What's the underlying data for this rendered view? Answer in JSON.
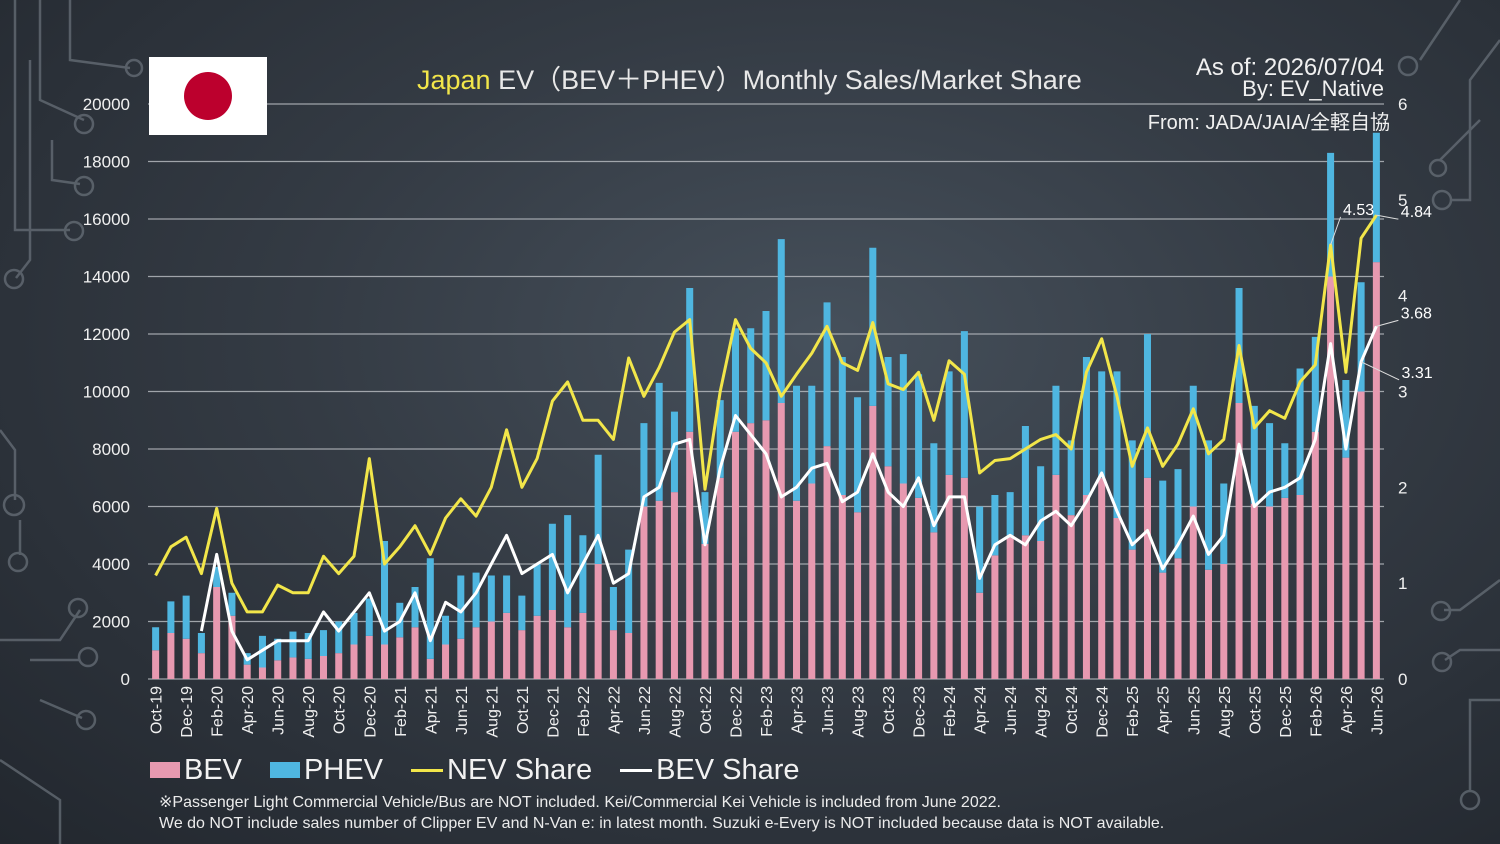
{
  "title_prefix": "Japan",
  "title_rest": " EV（BEV＋PHEV）Monthly Sales/Market Share",
  "as_of": "As of: 2026/07/04",
  "by": "By: EV_Native",
  "source": "From: JADA/JAIA/全軽自協",
  "flag": "japan-flag",
  "legend": {
    "bev": "BEV",
    "phev": "PHEV",
    "nev": "NEV Share",
    "bevshare": "BEV Share"
  },
  "notes": [
    "※Passenger Light Commercial Vehicle/Bus are NOT included. Kei/Commercial Kei Vehicle is included from June 2022.",
    "We do NOT include sales number of Clipper EV and N-Van e: in latest month. Suzuki e-Every is NOT included because data is NOT available."
  ],
  "colors": {
    "bev": "#e799b0",
    "phev": "#4fb6e0",
    "nev": "#f2e64a",
    "bevshare": "#ffffff",
    "grid": "#b4b8bd"
  },
  "chart_data": {
    "type": "bar",
    "title": "Japan EV（BEV＋PHEV）Monthly Sales/Market Share",
    "categories": [
      "Oct-19",
      "Nov-19",
      "Dec-19",
      "Jan-20",
      "Feb-20",
      "Mar-20",
      "Apr-20",
      "May-20",
      "Jun-20",
      "Jul-20",
      "Aug-20",
      "Sep-20",
      "Oct-20",
      "Nov-20",
      "Dec-20",
      "Jan-21",
      "Feb-21",
      "Mar-21",
      "Apr-21",
      "May-21",
      "Jun-21",
      "Jul-21",
      "Aug-21",
      "Sep-21",
      "Oct-21",
      "Nov-21",
      "Dec-21",
      "Jan-22",
      "Feb-22",
      "Mar-22",
      "Apr-22",
      "May-22",
      "Jun-22",
      "Jul-22",
      "Aug-22",
      "Sep-22",
      "Oct-22",
      "Nov-22",
      "Dec-22",
      "Jan-23",
      "Feb-23",
      "Mar-23",
      "Apr-23",
      "May-23",
      "Jun-23",
      "Jul-23",
      "Aug-23",
      "Sep-23",
      "Oct-23",
      "Nov-23",
      "Dec-23",
      "Jan-24",
      "Feb-24",
      "Mar-24",
      "Apr-24",
      "May-24",
      "Jun-24",
      "Jul-24",
      "Aug-24",
      "Sep-24",
      "Oct-24",
      "Nov-24",
      "Dec-24",
      "Jan-25",
      "Feb-25",
      "Mar-25",
      "Apr-25",
      "May-25",
      "Jun-25",
      "Jul-25",
      "Aug-25",
      "Sep-25",
      "Oct-25",
      "Nov-25",
      "Dec-25",
      "Jan-26",
      "Feb-26",
      "Mar-26",
      "Apr-26",
      "May-26",
      "Jun-26"
    ],
    "x_tick_labels": [
      "Oct-19",
      "Dec-19",
      "Feb-20",
      "Apr-20",
      "Jun-20",
      "Aug-20",
      "Oct-20",
      "Dec-20",
      "Feb-21",
      "Apr-21",
      "Jun-21",
      "Aug-21",
      "Oct-21",
      "Dec-21",
      "Feb-22",
      "Apr-22",
      "Jun-22",
      "Aug-22",
      "Oct-22",
      "Dec-22",
      "Feb-23",
      "Apr-23",
      "Jun-23",
      "Aug-23",
      "Oct-23",
      "Dec-23",
      "Feb-24",
      "Apr-24",
      "Jun-24",
      "Aug-24",
      "Oct-24",
      "Dec-24",
      "Feb-25",
      "Apr-25",
      "Jun-25",
      "Aug-25",
      "Oct-25",
      "Dec-25",
      "Feb-26",
      "Apr-26",
      "Jun-26"
    ],
    "y_left_ticks": [
      "0",
      "2000",
      "4000",
      "6000",
      "8000",
      "10000",
      "12000",
      "14000",
      "16000",
      "18000",
      "20000"
    ],
    "y_right_ticks": [
      "0",
      "1",
      "2",
      "3",
      "4",
      "5",
      "6"
    ],
    "ylim_left": [
      0,
      20000
    ],
    "ylim_right": [
      0,
      6
    ],
    "stacked": true,
    "grid": true,
    "legend_position": "bottom-left",
    "series": [
      {
        "name": "BEV",
        "axis": "left",
        "kind": "bar",
        "values": [
          1000,
          1600,
          1400,
          900,
          3200,
          2200,
          500,
          400,
          650,
          750,
          700,
          800,
          900,
          1200,
          1500,
          1200,
          1450,
          1800,
          700,
          1200,
          1400,
          1800,
          2000,
          2300,
          1700,
          2200,
          2400,
          1800,
          2300,
          4000,
          1700,
          1600,
          6000,
          6200,
          6500,
          8600,
          4700,
          7000,
          8600,
          8900,
          9000,
          9600,
          6200,
          6800,
          8100,
          6400,
          5800,
          9500,
          7400,
          6800,
          6300,
          5100,
          7100,
          7000,
          3000,
          4300,
          5000,
          5000,
          4800,
          7100,
          5700,
          6400,
          7000,
          5600,
          4500,
          7000,
          3700,
          4200,
          6000,
          3800,
          4000,
          9600,
          6100,
          6000,
          6300,
          6400,
          8600,
          14000,
          7700,
          10000,
          14500
        ]
      },
      {
        "name": "PHEV",
        "axis": "left",
        "kind": "bar",
        "values": [
          800,
          1100,
          1500,
          700,
          700,
          800,
          400,
          1100,
          750,
          900,
          900,
          900,
          1100,
          1100,
          1300,
          3600,
          1200,
          1400,
          3500,
          1000,
          2200,
          1900,
          1600,
          1300,
          1200,
          1800,
          3000,
          3900,
          2700,
          3800,
          1500,
          2900,
          2900,
          4100,
          2800,
          5000,
          1800,
          2700,
          3600,
          3300,
          3800,
          5700,
          4000,
          3400,
          5000,
          4800,
          4000,
          5500,
          3800,
          4500,
          4300,
          3100,
          3600,
          5100,
          3000,
          2100,
          1500,
          3800,
          2600,
          3100,
          2600,
          4800,
          3700,
          5100,
          3800,
          5000,
          3200,
          3100,
          4200,
          4500,
          2800,
          4000,
          3400,
          2900,
          1900,
          4400,
          3300,
          4300,
          2700,
          3800,
          4500
        ]
      },
      {
        "name": "NEV Share",
        "axis": "right",
        "kind": "line",
        "values": [
          1.08,
          1.38,
          1.48,
          1.1,
          1.78,
          1.0,
          0.7,
          0.7,
          0.98,
          0.9,
          0.9,
          1.28,
          1.1,
          1.28,
          2.3,
          1.2,
          1.38,
          1.6,
          1.3,
          1.68,
          1.88,
          1.7,
          2.0,
          2.6,
          2.0,
          2.3,
          2.9,
          3.1,
          2.7,
          2.7,
          2.5,
          3.35,
          2.95,
          3.25,
          3.62,
          3.75,
          1.98,
          3.0,
          3.75,
          3.45,
          3.3,
          2.95,
          3.18,
          3.4,
          3.68,
          3.3,
          3.22,
          3.72,
          3.08,
          3.02,
          3.2,
          2.7,
          3.32,
          3.18,
          2.15,
          2.28,
          2.3,
          2.4,
          2.5,
          2.55,
          2.4,
          3.2,
          3.55,
          2.95,
          2.22,
          2.62,
          2.22,
          2.45,
          2.82,
          2.35,
          2.5,
          3.48,
          2.62,
          2.8,
          2.72,
          3.1,
          3.28,
          4.53,
          3.2,
          4.6,
          4.84
        ]
      },
      {
        "name": "BEV Share",
        "axis": "right",
        "kind": "line",
        "values": [
          null,
          null,
          null,
          0.5,
          1.3,
          0.5,
          0.2,
          0.3,
          0.4,
          0.4,
          0.4,
          0.7,
          0.5,
          0.7,
          0.9,
          0.5,
          0.6,
          0.9,
          0.4,
          0.8,
          0.7,
          0.9,
          1.2,
          1.5,
          1.1,
          1.2,
          1.3,
          0.9,
          1.2,
          1.5,
          1.0,
          1.1,
          1.9,
          2.0,
          2.45,
          2.5,
          1.4,
          2.2,
          2.75,
          2.55,
          2.35,
          1.9,
          2.0,
          2.2,
          2.25,
          1.85,
          1.95,
          2.35,
          1.95,
          1.8,
          2.1,
          1.6,
          1.9,
          1.9,
          1.05,
          1.4,
          1.5,
          1.4,
          1.65,
          1.75,
          1.6,
          1.85,
          2.15,
          1.75,
          1.4,
          1.55,
          1.15,
          1.4,
          1.7,
          1.3,
          1.5,
          2.45,
          1.8,
          1.95,
          2.0,
          2.1,
          2.5,
          3.5,
          2.4,
          3.31,
          3.68
        ]
      }
    ],
    "annotations": [
      "4.53",
      "4.84",
      "3.68",
      "3.31"
    ]
  }
}
